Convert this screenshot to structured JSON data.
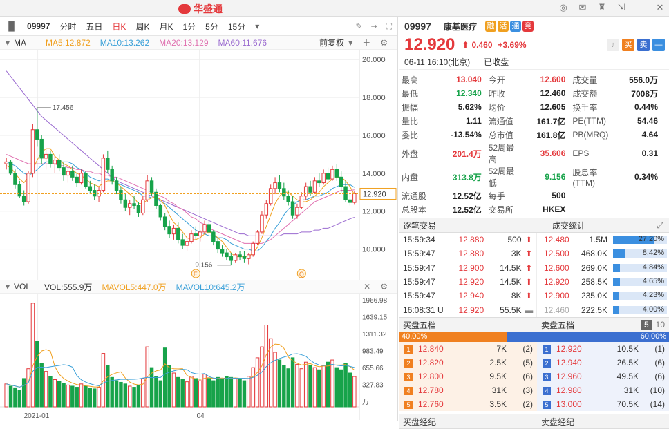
{
  "app": {
    "brand": "华盛通"
  },
  "toolbar": {
    "code": "09997",
    "periods": [
      {
        "label": "分时",
        "active": false
      },
      {
        "label": "五日",
        "active": false
      },
      {
        "label": "日K",
        "active": true
      },
      {
        "label": "周K",
        "active": false
      },
      {
        "label": "月K",
        "active": false
      },
      {
        "label": "1分",
        "active": false
      },
      {
        "label": "5分",
        "active": false
      },
      {
        "label": "15分",
        "active": false
      }
    ]
  },
  "ma_bar": {
    "label": "MA",
    "ma5": "MA5:12.872",
    "ma10": "MA10:13.262",
    "ma20": "MA20:13.129",
    "ma60": "MA60:11.676",
    "adjust": "前复权"
  },
  "vol_bar": {
    "label": "VOL",
    "vol": "VOL:555.9万",
    "mavol5": "MAVOL5:447.0万",
    "mavol10": "MAVOL10:645.2万"
  },
  "chart_data": {
    "type": "candlestick",
    "price_axis": [
      "20.000",
      "18.000",
      "16.000",
      "14.000",
      "12.000",
      "10.000"
    ],
    "price_range": [
      8.6,
      20.3
    ],
    "current_label": "12.920",
    "high_label": "17.456",
    "low_label": "9.156",
    "x_labels": [
      "2021-01",
      "04"
    ],
    "vol_axis": [
      "1966.98",
      "1639.15",
      "1311.32",
      "983.49",
      "655.66",
      "327.83",
      "万"
    ],
    "vol_max": 2000,
    "markers": [
      "E",
      "Q"
    ],
    "candles": [
      [
        14.5,
        14.8,
        14.2,
        14.6
      ],
      [
        14.6,
        14.7,
        13.9,
        14.0
      ],
      [
        14.0,
        14.2,
        13.2,
        13.4
      ],
      [
        13.4,
        13.6,
        12.7,
        12.8
      ],
      [
        12.8,
        13.1,
        12.3,
        12.5
      ],
      [
        12.5,
        14.1,
        12.4,
        14.0
      ],
      [
        14.0,
        16.6,
        13.8,
        16.3
      ],
      [
        16.3,
        17.456,
        15.4,
        15.8
      ],
      [
        15.8,
        16.0,
        14.5,
        14.8
      ],
      [
        14.8,
        15.3,
        14.2,
        15.0
      ],
      [
        15.0,
        15.2,
        14.3,
        14.5
      ],
      [
        14.5,
        14.9,
        14.0,
        14.7
      ],
      [
        14.7,
        15.0,
        14.1,
        14.3
      ],
      [
        14.3,
        14.6,
        13.6,
        13.9
      ],
      [
        13.9,
        14.3,
        13.5,
        14.1
      ],
      [
        14.1,
        14.4,
        13.6,
        13.8
      ],
      [
        13.8,
        14.0,
        13.3,
        13.5
      ],
      [
        13.5,
        14.2,
        13.4,
        14.0
      ],
      [
        14.0,
        14.1,
        13.2,
        13.3
      ],
      [
        13.3,
        13.6,
        12.9,
        13.1
      ],
      [
        13.1,
        13.4,
        12.6,
        12.8
      ],
      [
        12.8,
        13.3,
        12.5,
        13.1
      ],
      [
        13.1,
        15.0,
        13.0,
        14.8
      ],
      [
        14.8,
        15.2,
        14.0,
        14.2
      ],
      [
        14.2,
        14.4,
        13.4,
        13.6
      ],
      [
        13.6,
        13.8,
        12.9,
        13.1
      ],
      [
        13.1,
        13.3,
        12.4,
        12.6
      ],
      [
        12.6,
        12.9,
        12.0,
        12.2
      ],
      [
        12.2,
        12.6,
        11.8,
        12.4
      ],
      [
        12.4,
        12.8,
        12.1,
        12.3
      ],
      [
        12.3,
        12.5,
        11.7,
        11.9
      ],
      [
        11.9,
        12.8,
        11.8,
        12.6
      ],
      [
        12.6,
        13.9,
        12.5,
        13.6
      ],
      [
        13.6,
        13.8,
        12.8,
        13.0
      ],
      [
        13.0,
        13.2,
        12.1,
        12.3
      ],
      [
        12.3,
        12.4,
        11.5,
        11.7
      ],
      [
        11.7,
        11.9,
        11.0,
        11.2
      ],
      [
        11.2,
        11.5,
        10.6,
        10.8
      ],
      [
        10.8,
        11.3,
        10.5,
        11.1
      ],
      [
        11.1,
        11.4,
        10.3,
        10.5
      ],
      [
        10.5,
        10.8,
        10.0,
        10.2
      ],
      [
        10.2,
        10.6,
        9.9,
        10.4
      ],
      [
        10.4,
        11.0,
        10.3,
        10.8
      ],
      [
        10.8,
        11.2,
        10.5,
        10.7
      ],
      [
        10.7,
        11.0,
        10.4,
        10.9
      ],
      [
        10.9,
        11.5,
        10.8,
        11.3
      ],
      [
        11.3,
        11.5,
        10.7,
        10.9
      ],
      [
        10.9,
        11.0,
        10.2,
        10.4
      ],
      [
        10.4,
        10.6,
        9.8,
        10.0
      ],
      [
        10.0,
        10.2,
        9.6,
        9.8
      ],
      [
        9.8,
        10.0,
        9.4,
        9.6
      ],
      [
        9.6,
        9.8,
        9.156,
        9.4
      ],
      [
        9.4,
        9.8,
        9.3,
        9.7
      ],
      [
        9.7,
        9.9,
        9.4,
        9.6
      ],
      [
        9.6,
        9.9,
        9.3,
        9.5
      ],
      [
        9.5,
        9.8,
        9.2,
        9.7
      ],
      [
        9.7,
        10.4,
        9.6,
        10.3
      ],
      [
        10.3,
        11.0,
        10.2,
        10.9
      ],
      [
        10.9,
        12.0,
        10.8,
        11.8
      ],
      [
        11.8,
        12.6,
        11.6,
        12.4
      ],
      [
        12.4,
        13.4,
        12.3,
        13.2
      ],
      [
        13.2,
        13.8,
        12.9,
        13.5
      ],
      [
        13.5,
        13.9,
        13.0,
        13.2
      ],
      [
        13.2,
        13.5,
        12.6,
        12.8
      ],
      [
        12.8,
        13.1,
        12.3,
        12.5
      ],
      [
        12.5,
        12.8,
        11.6,
        11.8
      ],
      [
        11.8,
        12.4,
        11.6,
        12.2
      ],
      [
        12.2,
        13.0,
        12.1,
        12.8
      ],
      [
        12.8,
        13.5,
        12.6,
        13.3
      ],
      [
        13.3,
        13.6,
        12.8,
        13.0
      ],
      [
        13.0,
        13.8,
        12.9,
        13.6
      ],
      [
        13.6,
        14.0,
        13.3,
        13.5
      ],
      [
        13.5,
        14.2,
        13.4,
        14.0
      ],
      [
        14.0,
        14.3,
        13.5,
        13.7
      ],
      [
        13.7,
        14.4,
        13.6,
        14.2
      ],
      [
        14.2,
        14.5,
        13.6,
        13.8
      ],
      [
        13.8,
        14.1,
        13.0,
        13.3
      ],
      [
        13.3,
        13.6,
        12.5,
        12.6
      ],
      [
        12.6,
        13.0,
        12.3,
        12.46
      ],
      [
        12.46,
        13.04,
        12.34,
        12.92
      ]
    ],
    "volumes": [
      420,
      380,
      350,
      300,
      520,
      700,
      1900,
      1200,
      800,
      650,
      560,
      500,
      470,
      430,
      400,
      380,
      360,
      420,
      380,
      340,
      330,
      360,
      980,
      760,
      540,
      480,
      450,
      420,
      380,
      360,
      400,
      520,
      1100,
      720,
      560,
      480,
      1080,
      760,
      620,
      540,
      500,
      460,
      560,
      520,
      480,
      600,
      520,
      480,
      540,
      500,
      560,
      540,
      520,
      500,
      480,
      560,
      720,
      900,
      1100,
      1500,
      1250,
      1000,
      860,
      760,
      700,
      900,
      780,
      700,
      820,
      760,
      720,
      680,
      760,
      820,
      860,
      720,
      680,
      800,
      620,
      556
    ],
    "ma5": [
      14.4,
      14.3,
      14.0,
      13.7,
      13.5,
      13.8,
      14.2,
      14.7,
      15.1,
      15.3,
      15.3,
      14.9,
      14.7,
      14.5,
      14.4,
      14.2,
      14.0,
      13.9,
      13.7,
      13.5,
      13.4,
      13.3,
      13.5,
      13.6,
      13.6,
      13.5,
      13.3,
      13.1,
      12.9,
      12.7,
      12.4,
      12.4,
      12.6,
      12.7,
      12.8,
      12.6,
      12.3,
      11.8,
      11.4,
      11.2,
      10.9,
      10.6,
      10.5,
      10.5,
      10.6,
      10.8,
      10.9,
      10.8,
      10.6,
      10.4,
      10.1,
      9.8,
      9.6,
      9.6,
      9.6,
      9.6,
      9.8,
      10.1,
      10.6,
      11.2,
      11.8,
      12.4,
      12.8,
      13.0,
      13.0,
      12.8,
      12.6,
      12.5,
      12.5,
      12.6,
      12.8,
      13.0,
      13.3,
      13.5,
      13.7,
      13.8,
      13.8,
      13.6,
      13.3,
      12.87
    ],
    "ma10": [
      14.6,
      14.5,
      14.4,
      14.2,
      14.0,
      13.9,
      14.0,
      14.2,
      14.4,
      14.6,
      14.6,
      14.6,
      14.6,
      14.6,
      14.6,
      14.5,
      14.3,
      14.2,
      14.0,
      13.8,
      13.7,
      13.6,
      13.7,
      13.7,
      13.6,
      13.5,
      13.4,
      13.3,
      13.2,
      13.1,
      13.0,
      12.8,
      12.8,
      12.7,
      12.7,
      12.5,
      12.4,
      12.2,
      12.0,
      11.8,
      11.6,
      11.4,
      11.2,
      11.0,
      10.9,
      10.8,
      10.7,
      10.7,
      10.6,
      10.6,
      10.5,
      10.3,
      10.2,
      10.1,
      10.0,
      10.0,
      9.9,
      9.9,
      10.1,
      10.4,
      10.7,
      11.1,
      11.4,
      11.8,
      12.1,
      12.3,
      12.5,
      12.6,
      12.6,
      12.7,
      12.8,
      12.8,
      12.9,
      13.0,
      13.2,
      13.3,
      13.4,
      13.4,
      13.4,
      13.26
    ],
    "ma20": [
      15.0,
      14.9,
      14.8,
      14.7,
      14.6,
      14.5,
      14.5,
      14.5,
      14.5,
      14.5,
      14.5,
      14.5,
      14.4,
      14.4,
      14.3,
      14.3,
      14.2,
      14.2,
      14.1,
      14.1,
      14.0,
      14.0,
      13.9,
      13.9,
      13.8,
      13.8,
      13.7,
      13.6,
      13.5,
      13.4,
      13.3,
      13.2,
      13.1,
      13.0,
      12.9,
      12.8,
      12.7,
      12.5,
      12.4,
      12.2,
      12.1,
      11.9,
      11.7,
      11.6,
      11.4,
      11.3,
      11.1,
      11.0,
      10.9,
      10.8,
      10.7,
      10.6,
      10.5,
      10.4,
      10.3,
      10.3,
      10.3,
      10.3,
      10.3,
      10.4,
      10.5,
      10.7,
      10.9,
      11.1,
      11.3,
      11.5,
      11.7,
      11.9,
      12.1,
      12.3,
      12.5,
      12.6,
      12.7,
      12.8,
      12.9,
      13.0,
      13.1,
      13.1,
      13.1,
      13.13
    ],
    "ma60": [
      19.4,
      19.1,
      18.8,
      18.5,
      18.2,
      17.9,
      17.6,
      17.3,
      17.0,
      16.8,
      16.6,
      16.4,
      16.2,
      16.0,
      15.8,
      15.6,
      15.4,
      15.2,
      15.0,
      14.8,
      14.6,
      14.4,
      14.2,
      14.0,
      13.8,
      13.6,
      13.5,
      13.4,
      13.3,
      13.2,
      13.1,
      13.0,
      12.9,
      12.8,
      12.7,
      12.6,
      12.5,
      12.4,
      12.3,
      12.2,
      12.1,
      12.0,
      11.9,
      11.8,
      11.7,
      11.6,
      11.5,
      11.4,
      11.3,
      11.2,
      11.1,
      11.0,
      10.9,
      10.8,
      10.8,
      10.7,
      10.7,
      10.7,
      10.7,
      10.7,
      10.7,
      10.7,
      10.7,
      10.8,
      10.8,
      10.8,
      10.8,
      10.9,
      10.9,
      10.9,
      11.0,
      11.0,
      11.1,
      11.1,
      11.2,
      11.3,
      11.4,
      11.5,
      11.6,
      11.68
    ]
  },
  "quote": {
    "code": "09997",
    "name": "康基医疗",
    "badges": [
      {
        "t": "融",
        "c": "#f0a020"
      },
      {
        "t": "活",
        "c": "#f0a020"
      },
      {
        "t": "通",
        "c": "#3b8fe0"
      },
      {
        "t": "竞",
        "c": "#e4393c"
      }
    ],
    "price": "12.920",
    "change": "0.460",
    "pct": "+3.69%",
    "buy": "买",
    "sell": "卖",
    "time": "06-11  16:10(北京)",
    "status": "已收盘"
  },
  "stats": [
    [
      {
        "k": "最高",
        "v": "13.040",
        "c": "red"
      },
      {
        "k": "今开",
        "v": "12.600",
        "c": "red"
      },
      {
        "k": "成交量",
        "v": "556.0万",
        "c": "black"
      }
    ],
    [
      {
        "k": "最低",
        "v": "12.340",
        "c": "green"
      },
      {
        "k": "昨收",
        "v": "12.460",
        "c": "black"
      },
      {
        "k": "成交额",
        "v": "7008万",
        "c": "black"
      }
    ],
    [
      {
        "k": "振幅",
        "v": "5.62%",
        "c": "black"
      },
      {
        "k": "均价",
        "v": "12.605",
        "c": "black"
      },
      {
        "k": "换手率",
        "v": "0.44%",
        "c": "black"
      }
    ],
    [
      {
        "k": "量比",
        "v": "1.11",
        "c": "black"
      },
      {
        "k": "流通值",
        "v": "161.7亿",
        "c": "black"
      },
      {
        "k": "PE(TTM)",
        "v": "54.46",
        "c": "black"
      }
    ],
    [
      {
        "k": "委比",
        "v": "-13.54%",
        "c": "black"
      },
      {
        "k": "总市值",
        "v": "161.8亿",
        "c": "black"
      },
      {
        "k": "PB(MRQ)",
        "v": "4.64",
        "c": "black"
      }
    ],
    [
      {
        "k": "外盘",
        "v": "201.4万",
        "c": "red"
      },
      {
        "k": "52周最高",
        "v": "35.606",
        "c": "red"
      },
      {
        "k": "EPS",
        "v": "0.31",
        "c": "black"
      }
    ],
    [
      {
        "k": "内盘",
        "v": "313.8万",
        "c": "green"
      },
      {
        "k": "52周最低",
        "v": "9.156",
        "c": "green"
      },
      {
        "k": "股息率(TTM)",
        "v": "0.34%",
        "c": "black"
      }
    ],
    [
      {
        "k": "流通股",
        "v": "12.52亿",
        "c": "black"
      },
      {
        "k": "每手",
        "v": "500",
        "c": "black"
      },
      {
        "k": "",
        "v": "",
        "c": "black"
      }
    ],
    [
      {
        "k": "总股本",
        "v": "12.52亿",
        "c": "black"
      },
      {
        "k": "交易所",
        "v": "HKEX",
        "c": "black"
      },
      {
        "k": "",
        "v": "",
        "c": "black"
      }
    ]
  ],
  "trades_title": "逐笔交易",
  "deals_title": "成交统计",
  "trades": [
    {
      "t": "15:59:34",
      "p": "12.880",
      "v": "500",
      "d": "up"
    },
    {
      "t": "15:59:47",
      "p": "12.880",
      "v": "3K",
      "d": "up"
    },
    {
      "t": "15:59:47",
      "p": "12.900",
      "v": "14.5K",
      "d": "up"
    },
    {
      "t": "15:59:47",
      "p": "12.920",
      "v": "14.5K",
      "d": "up"
    },
    {
      "t": "15:59:47",
      "p": "12.940",
      "v": "8K",
      "d": "up"
    },
    {
      "t": "16:08:31 U",
      "p": "12.920",
      "v": "55.5K",
      "d": "flat"
    }
  ],
  "deals": [
    {
      "p": "12.480",
      "v": "1.5M",
      "pct": "27.20%",
      "f": 0.272,
      "c": "red"
    },
    {
      "p": "12.500",
      "v": "468.0K",
      "pct": "8.42%",
      "f": 0.084,
      "c": "red"
    },
    {
      "p": "12.600",
      "v": "269.0K",
      "pct": "4.84%",
      "f": 0.048,
      "c": "red"
    },
    {
      "p": "12.920",
      "v": "258.5K",
      "pct": "4.65%",
      "f": 0.047,
      "c": "red"
    },
    {
      "p": "12.900",
      "v": "235.0K",
      "pct": "4.23%",
      "f": 0.042,
      "c": "red"
    },
    {
      "p": "12.460",
      "v": "222.5K",
      "pct": "4.00%",
      "f": 0.04,
      "c": "gray"
    }
  ],
  "book": {
    "bid_title": "买盘五档",
    "ask_title": "卖盘五档",
    "depth": [
      "5",
      "10"
    ],
    "bid_pct": "40.00%",
    "ask_pct": "60.00%",
    "bid_frac": 0.4,
    "bids": [
      {
        "n": "1",
        "p": "12.840",
        "v": "7K",
        "c": "(2)"
      },
      {
        "n": "2",
        "p": "12.820",
        "v": "2.5K",
        "c": "(5)"
      },
      {
        "n": "3",
        "p": "12.800",
        "v": "9.5K",
        "c": "(6)"
      },
      {
        "n": "4",
        "p": "12.780",
        "v": "31K",
        "c": "(3)"
      },
      {
        "n": "5",
        "p": "12.760",
        "v": "3.5K",
        "c": "(2)"
      }
    ],
    "asks": [
      {
        "n": "1",
        "p": "12.920",
        "v": "10.5K",
        "c": "(1)"
      },
      {
        "n": "2",
        "p": "12.940",
        "v": "26.5K",
        "c": "(6)"
      },
      {
        "n": "3",
        "p": "12.960",
        "v": "49.5K",
        "c": "(6)"
      },
      {
        "n": "4",
        "p": "12.980",
        "v": "31K",
        "c": "(10)"
      },
      {
        "n": "5",
        "p": "13.000",
        "v": "70.5K",
        "c": "(14)"
      }
    ]
  },
  "brokers": {
    "bid": "买盘经纪",
    "ask": "卖盘经纪"
  }
}
